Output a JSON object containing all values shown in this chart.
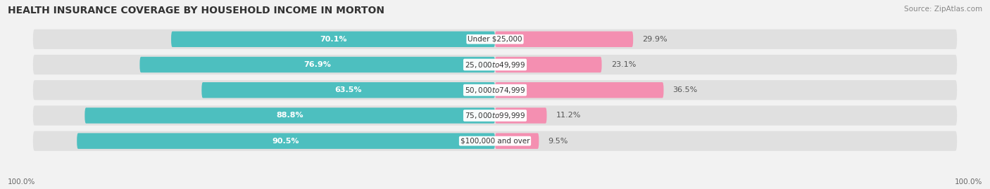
{
  "title": "HEALTH INSURANCE COVERAGE BY HOUSEHOLD INCOME IN MORTON",
  "source": "Source: ZipAtlas.com",
  "categories": [
    "Under $25,000",
    "$25,000 to $49,999",
    "$50,000 to $74,999",
    "$75,000 to $99,999",
    "$100,000 and over"
  ],
  "with_coverage": [
    70.1,
    76.9,
    63.5,
    88.8,
    90.5
  ],
  "without_coverage": [
    29.9,
    23.1,
    36.5,
    11.2,
    9.5
  ],
  "color_with": "#4DBFBF",
  "color_without": "#F48FB1",
  "bg_color": "#f2f2f2",
  "row_bg_color": "#e0e0e0",
  "title_fontsize": 10,
  "label_fontsize": 8,
  "tick_fontsize": 7.5,
  "source_fontsize": 7.5,
  "x_left_label": "100.0%",
  "x_right_label": "100.0%"
}
